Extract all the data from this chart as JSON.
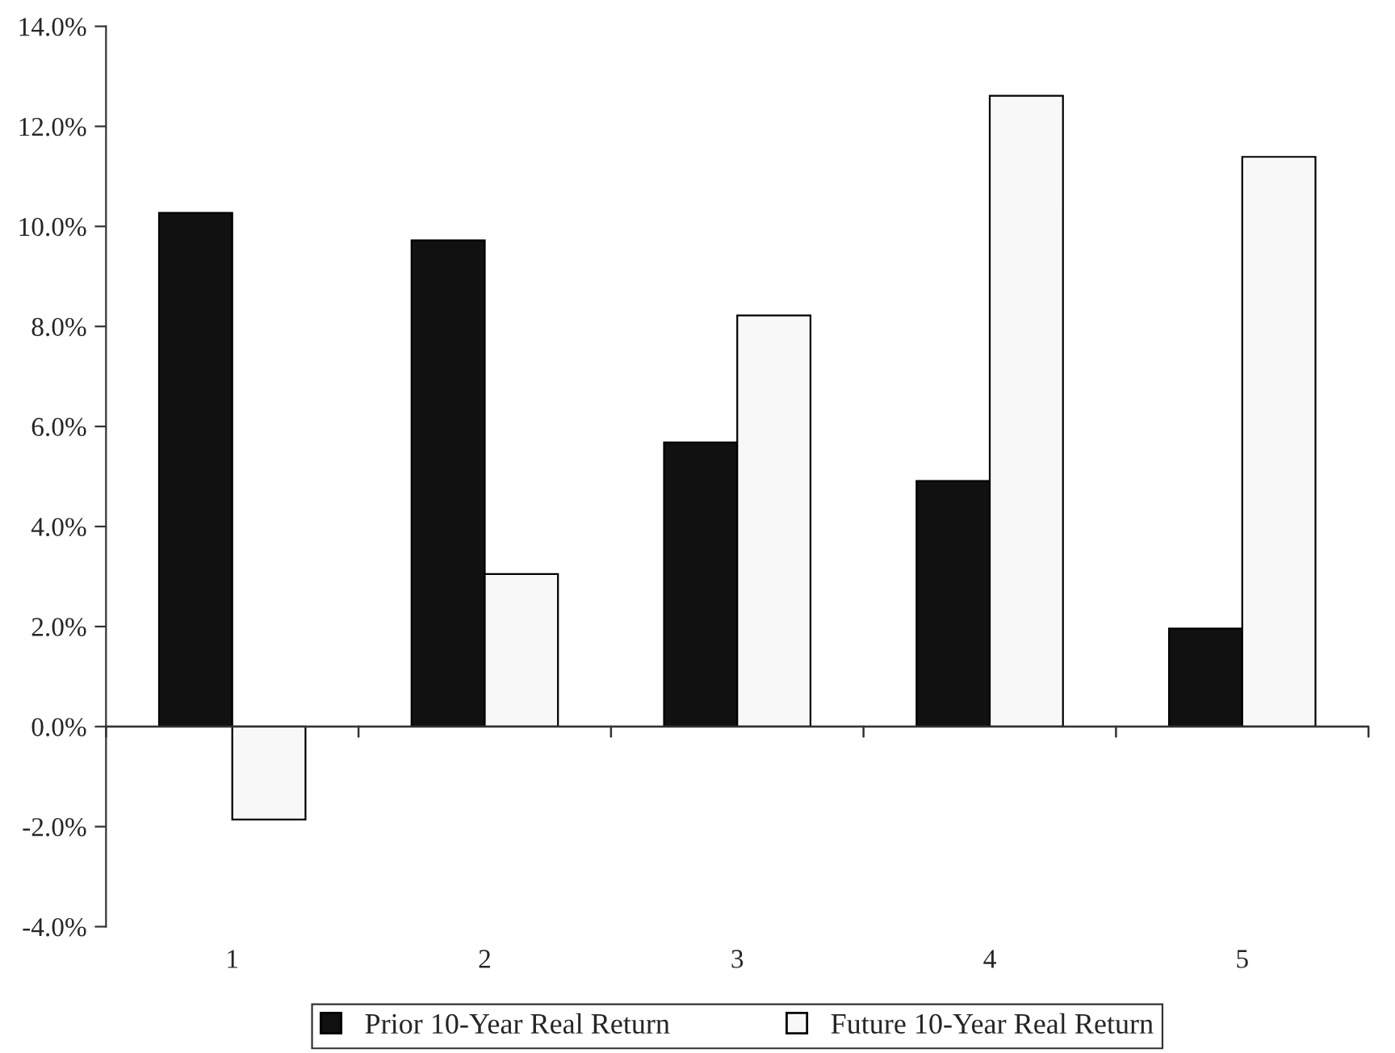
{
  "chart_data": {
    "type": "bar",
    "categories": [
      "1",
      "2",
      "3",
      "4",
      "5"
    ],
    "series": [
      {
        "name": "Prior 10-Year Real Return",
        "color": "#111111",
        "values": [
          10.27,
          9.72,
          5.68,
          4.91,
          1.96
        ]
      },
      {
        "name": "Future 10-Year Real Return",
        "color": "#f8f8f8",
        "values": [
          -1.86,
          3.05,
          8.22,
          12.61,
          11.39
        ]
      }
    ],
    "ylim": [
      -4,
      14
    ],
    "yticks": [
      {
        "value": -4,
        "label": "-4.0%"
      },
      {
        "value": -2,
        "label": "-2.0%"
      },
      {
        "value": 0,
        "label": "0.0%"
      },
      {
        "value": 2,
        "label": "2.0%"
      },
      {
        "value": 4,
        "label": "4.0%"
      },
      {
        "value": 6,
        "label": "6.0%"
      },
      {
        "value": 8,
        "label": "8.0%"
      },
      {
        "value": 10,
        "label": "10.0%"
      },
      {
        "value": 12,
        "label": "12.0%"
      },
      {
        "value": 14,
        "label": "14.0%"
      }
    ],
    "legend": "bottom"
  }
}
